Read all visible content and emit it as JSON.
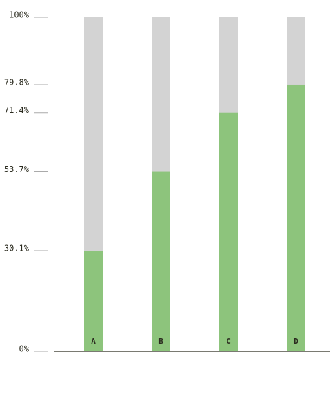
{
  "chart_data": {
    "type": "bar",
    "categories": [
      "A",
      "B",
      "C",
      "D"
    ],
    "values": [
      30.1,
      53.7,
      71.4,
      79.8
    ],
    "color": "#8dc47c",
    "track_color": "#d3d3d3",
    "ylim": [
      0,
      100
    ],
    "yticks": [
      {
        "value": 0,
        "label": "0%"
      },
      {
        "value": 30.1,
        "label": "30.1%"
      },
      {
        "value": 53.7,
        "label": "53.7%"
      },
      {
        "value": 71.4,
        "label": "71.4%"
      },
      {
        "value": 79.8,
        "label": "79.8%"
      },
      {
        "value": 100,
        "label": "100%"
      }
    ]
  }
}
